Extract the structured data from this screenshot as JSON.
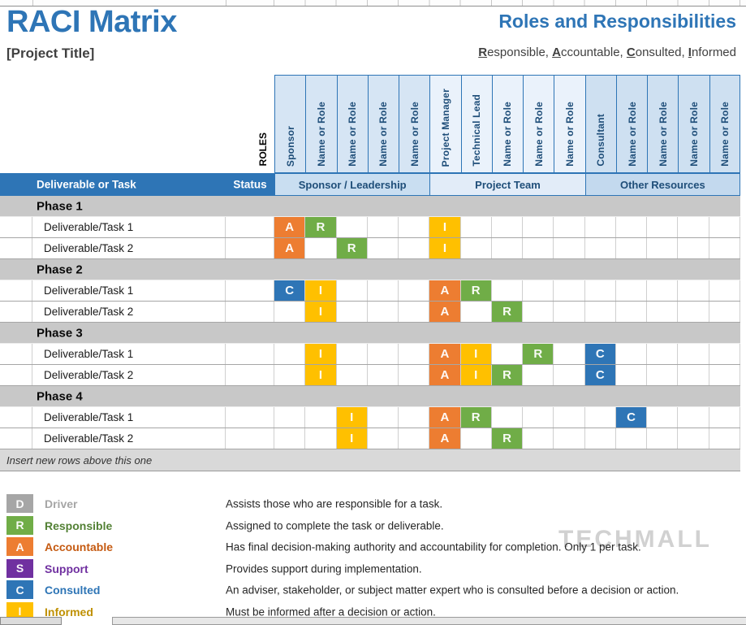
{
  "header": {
    "title": "RACI Matrix",
    "project_title": "[Project Title]",
    "right_title": "Roles and Responsibilities",
    "subtitle_words": [
      {
        "initial": "R",
        "rest": "esponsible"
      },
      {
        "initial": "A",
        "rest": "ccountable"
      },
      {
        "initial": "C",
        "rest": "onsulted"
      },
      {
        "initial": "I",
        "rest": "nformed"
      }
    ],
    "subtitle_separator": ", "
  },
  "matrix": {
    "corner_label": "ROLES",
    "task_header": "Deliverable or Task",
    "status_header": "Status",
    "groups": [
      {
        "label": "Sponsor / Leadership",
        "columns": [
          "Sponsor",
          "Name or Role",
          "Name or Role",
          "Name or Role",
          "Name or Role"
        ]
      },
      {
        "label": "Project Team",
        "columns": [
          "Project Manager",
          "Technical Lead",
          "Name or Role",
          "Name or Role",
          "Name or Role"
        ]
      },
      {
        "label": "Other Resources",
        "columns": [
          "Consultant",
          "Name or Role",
          "Name or Role",
          "Name or Role",
          "Name or Role"
        ]
      }
    ],
    "phases": [
      {
        "label": "Phase 1",
        "tasks": [
          {
            "label": "Deliverable/Task 1",
            "status": "",
            "assignments": {
              "0": "A",
              "1": "R",
              "5": "I"
            }
          },
          {
            "label": "Deliverable/Task 2",
            "status": "",
            "assignments": {
              "0": "A",
              "2": "R",
              "5": "I"
            }
          }
        ]
      },
      {
        "label": "Phase 2",
        "tasks": [
          {
            "label": "Deliverable/Task 1",
            "status": "",
            "assignments": {
              "0": "C",
              "1": "I",
              "5": "A",
              "6": "R"
            }
          },
          {
            "label": "Deliverable/Task 2",
            "status": "",
            "assignments": {
              "1": "I",
              "5": "A",
              "7": "R"
            }
          }
        ]
      },
      {
        "label": "Phase 3",
        "tasks": [
          {
            "label": "Deliverable/Task 1",
            "status": "",
            "assignments": {
              "1": "I",
              "5": "A",
              "6": "I",
              "8": "R",
              "10": "C"
            }
          },
          {
            "label": "Deliverable/Task 2",
            "status": "",
            "assignments": {
              "1": "I",
              "5": "A",
              "6": "I",
              "7": "R",
              "10": "C"
            }
          }
        ]
      },
      {
        "label": "Phase 4",
        "tasks": [
          {
            "label": "Deliverable/Task 1",
            "status": "",
            "assignments": {
              "2": "I",
              "5": "A",
              "6": "R",
              "11": "C"
            }
          },
          {
            "label": "Deliverable/Task 2",
            "status": "",
            "assignments": {
              "2": "I",
              "5": "A",
              "7": "R"
            }
          }
        ]
      }
    ],
    "insert_note": "Insert new rows above this one"
  },
  "legend": {
    "items": [
      {
        "letter": "D",
        "label": "Driver",
        "color": "#A6A6A6",
        "label_color": "#A6A6A6",
        "description": "Assists those who are responsible for a task."
      },
      {
        "letter": "R",
        "label": "Responsible",
        "color": "#70AD47",
        "label_color": "#538135",
        "description": "Assigned to complete the task or deliverable."
      },
      {
        "letter": "A",
        "label": "Accountable",
        "color": "#ED7D31",
        "label_color": "#C55A11",
        "description": "Has final decision-making authority and accountability for completion. Only 1 per task."
      },
      {
        "letter": "S",
        "label": "Support",
        "color": "#7030A0",
        "label_color": "#7030A0",
        "description": "Provides support during implementation."
      },
      {
        "letter": "C",
        "label": "Consulted",
        "color": "#2E75B6",
        "label_color": "#2E75B6",
        "description": "An adviser, stakeholder, or subject matter expert who is consulted before a decision or action."
      },
      {
        "letter": "I",
        "label": "Informed",
        "color": "#FFC000",
        "label_color": "#BF9000",
        "description": "Must be informed after a decision or action."
      }
    ]
  },
  "watermark": "TECHMALL",
  "colors": {
    "accent": "#2E75B6",
    "dark_blue_text": "#1F4E79",
    "raci": {
      "A": "#ED7D31",
      "R": "#70AD47",
      "C": "#2E75B6",
      "I": "#FFC000",
      "S": "#7030A0",
      "D": "#A6A6A6"
    },
    "group_columns": [
      "#D6E5F4",
      "#EAF2FB",
      "#CEE0F1"
    ],
    "group_bands": [
      "#C9DEF1",
      "#E2ECF8",
      "#C3D9EE"
    ],
    "phase_row_bg": "#C8C8C8",
    "insert_row_bg": "#D9D9D9"
  }
}
